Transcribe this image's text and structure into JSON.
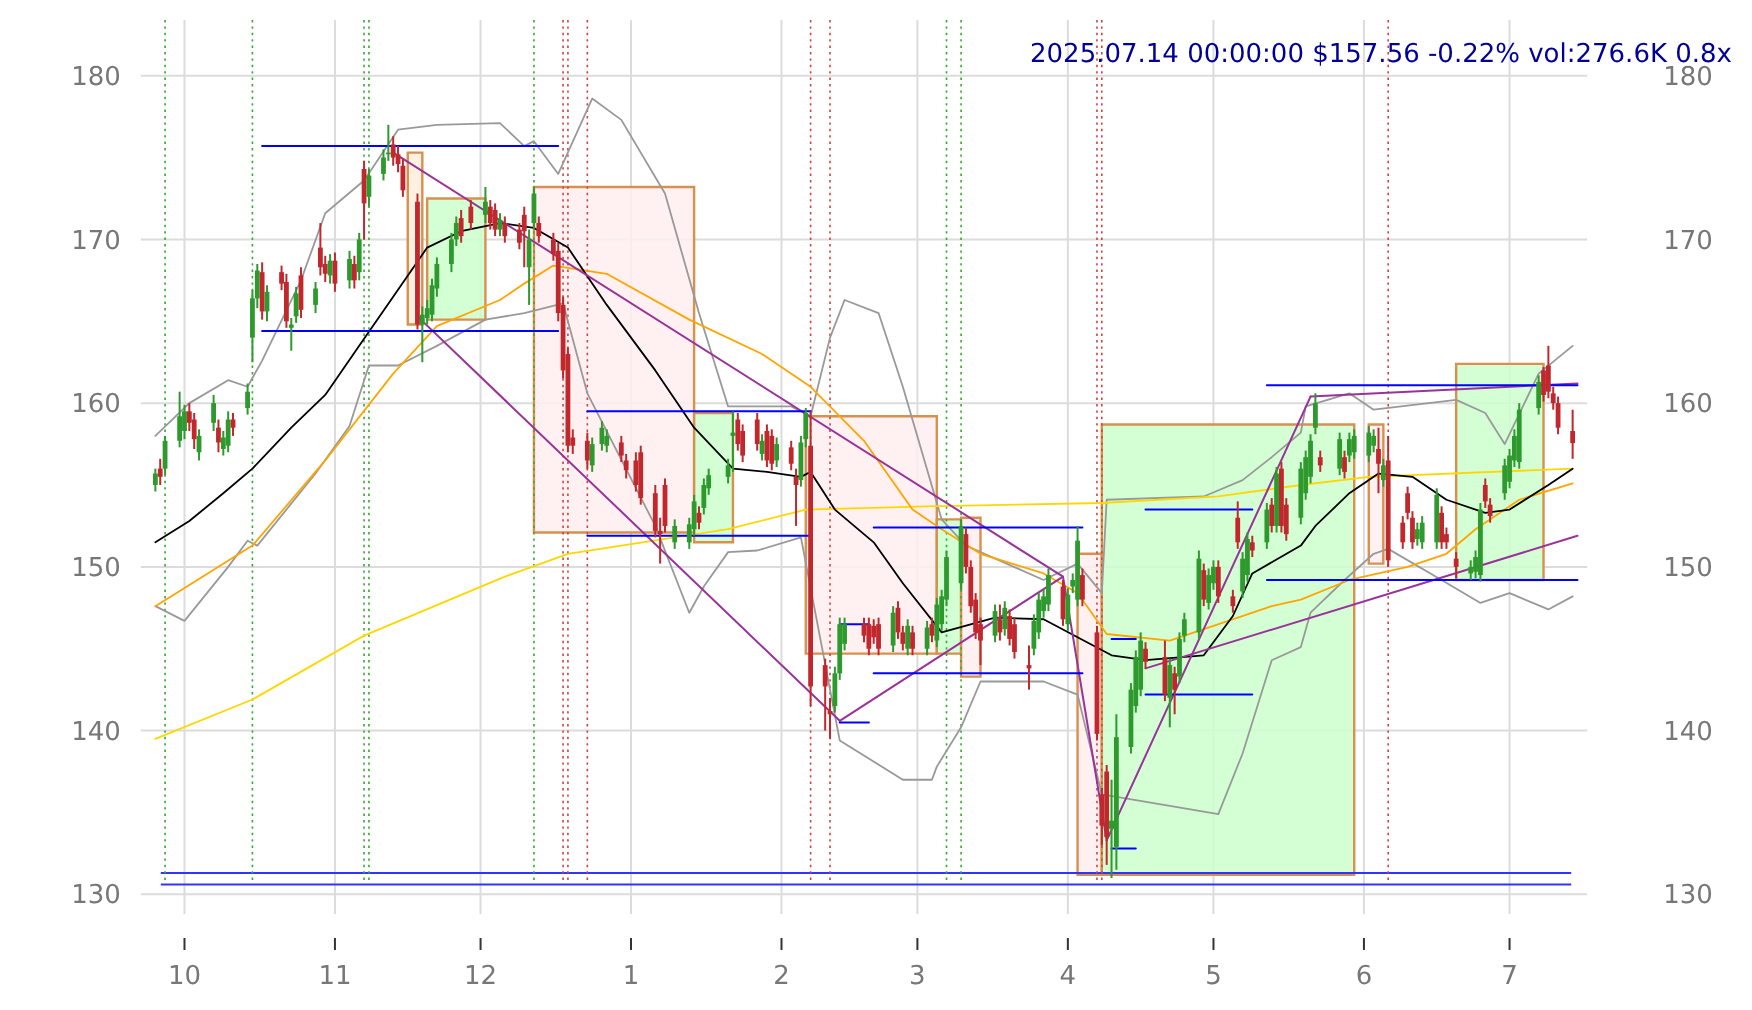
{
  "chart_data": {
    "type": "candlestick",
    "title": "2025.07.14 00:00:00 $157.56 -0.22% vol:276.6K 0.8x",
    "xlim": [
      "2024-09-22",
      "2025-07-17"
    ],
    "xticks": [
      {
        "value": "2024-10-01",
        "label": "10"
      },
      {
        "value": "2024-11-01",
        "label": "11"
      },
      {
        "value": "2024-12-01",
        "label": "12"
      },
      {
        "value": "2025-01-01",
        "label": "1"
      },
      {
        "value": "2025-02-01",
        "label": "2"
      },
      {
        "value": "2025-03-01",
        "label": "3"
      },
      {
        "value": "2025-04-01",
        "label": "4"
      },
      {
        "value": "2025-05-01",
        "label": "5"
      },
      {
        "value": "2025-06-01",
        "label": "6"
      },
      {
        "value": "2025-07-01",
        "label": "7"
      }
    ],
    "ylim": [
      128.8,
      183.4
    ],
    "yticks": [
      130,
      140,
      150,
      160,
      170,
      180
    ],
    "y2lim": [
      128.8,
      183.4
    ],
    "y2ticks": [
      130,
      140,
      150,
      160,
      170,
      180
    ],
    "grid": true,
    "x": [
      "2024-09-25",
      "2024-09-26",
      "2024-09-27",
      "2024-09-30",
      "2024-10-01",
      "2024-10-02",
      "2024-10-03",
      "2024-10-04",
      "2024-10-07",
      "2024-10-08",
      "2024-10-09",
      "2024-10-10",
      "2024-10-11",
      "2024-10-14",
      "2024-10-15",
      "2024-10-16",
      "2024-10-17",
      "2024-10-18",
      "2024-10-21",
      "2024-10-22",
      "2024-10-23",
      "2024-10-24",
      "2024-10-25",
      "2024-10-28",
      "2024-10-29",
      "2024-10-30",
      "2024-10-31",
      "2024-11-01",
      "2024-11-04",
      "2024-11-05",
      "2024-11-06",
      "2024-11-07",
      "2024-11-08",
      "2024-11-11",
      "2024-11-12",
      "2024-11-13",
      "2024-11-14",
      "2024-11-15",
      "2024-11-18",
      "2024-11-19",
      "2024-11-20",
      "2024-11-21",
      "2024-11-22",
      "2024-11-25",
      "2024-11-26",
      "2024-11-27",
      "2024-11-29",
      "2024-12-02",
      "2024-12-03",
      "2024-12-04",
      "2024-12-05",
      "2024-12-06",
      "2024-12-09",
      "2024-12-10",
      "2024-12-11",
      "2024-12-12",
      "2024-12-13",
      "2024-12-16",
      "2024-12-17",
      "2024-12-18",
      "2024-12-19",
      "2024-12-20",
      "2024-12-23",
      "2024-12-24",
      "2024-12-26",
      "2024-12-27",
      "2024-12-30",
      "2024-12-31",
      "2025-01-02",
      "2025-01-03",
      "2025-01-06",
      "2025-01-07",
      "2025-01-08",
      "2025-01-10",
      "2025-01-13",
      "2025-01-14",
      "2025-01-15",
      "2025-01-16",
      "2025-01-17",
      "2025-01-21",
      "2025-01-22",
      "2025-01-23",
      "2025-01-24",
      "2025-01-27",
      "2025-01-28",
      "2025-01-29",
      "2025-01-30",
      "2025-01-31",
      "2025-02-03",
      "2025-02-04",
      "2025-02-05",
      "2025-02-06",
      "2025-02-07",
      "2025-02-10",
      "2025-02-11",
      "2025-02-12",
      "2025-02-13",
      "2025-02-14",
      "2025-02-18",
      "2025-02-19",
      "2025-02-20",
      "2025-02-21",
      "2025-02-24",
      "2025-02-25",
      "2025-02-26",
      "2025-02-27",
      "2025-02-28",
      "2025-03-03",
      "2025-03-04",
      "2025-03-05",
      "2025-03-06",
      "2025-03-07",
      "2025-03-10",
      "2025-03-11",
      "2025-03-12",
      "2025-03-13",
      "2025-03-14",
      "2025-03-17",
      "2025-03-18",
      "2025-03-19",
      "2025-03-20",
      "2025-03-21",
      "2025-03-24",
      "2025-03-25",
      "2025-03-26",
      "2025-03-27",
      "2025-03-28",
      "2025-03-31",
      "2025-04-01",
      "2025-04-02",
      "2025-04-03",
      "2025-04-04",
      "2025-04-07",
      "2025-04-08",
      "2025-04-09",
      "2025-04-10",
      "2025-04-11",
      "2025-04-14",
      "2025-04-15",
      "2025-04-16",
      "2025-04-17",
      "2025-04-21",
      "2025-04-22",
      "2025-04-23",
      "2025-04-24",
      "2025-04-25",
      "2025-04-28",
      "2025-04-29",
      "2025-04-30",
      "2025-05-01",
      "2025-05-02",
      "2025-05-05",
      "2025-05-06",
      "2025-05-07",
      "2025-05-08",
      "2025-05-09",
      "2025-05-12",
      "2025-05-13",
      "2025-05-14",
      "2025-05-15",
      "2025-05-16",
      "2025-05-19",
      "2025-05-20",
      "2025-05-21",
      "2025-05-22",
      "2025-05-23",
      "2025-05-27",
      "2025-05-28",
      "2025-05-29",
      "2025-05-30",
      "2025-06-02",
      "2025-06-03",
      "2025-06-04",
      "2025-06-05",
      "2025-06-06",
      "2025-06-09",
      "2025-06-10",
      "2025-06-11",
      "2025-06-12",
      "2025-06-13",
      "2025-06-16",
      "2025-06-17",
      "2025-06-18",
      "2025-06-20",
      "2025-06-23",
      "2025-06-24",
      "2025-06-25",
      "2025-06-26",
      "2025-06-27",
      "2025-06-30",
      "2025-07-01",
      "2025-07-02",
      "2025-07-03",
      "2025-07-07",
      "2025-07-08",
      "2025-07-09",
      "2025-07-10",
      "2025-07-11",
      "2025-07-14"
    ],
    "ohlc": [
      [
        155.0,
        156.0,
        154.6,
        155.7
      ],
      [
        156.0,
        156.6,
        155.0,
        155.5
      ],
      [
        156.0,
        158.0,
        155.6,
        157.7
      ],
      [
        157.7,
        160.7,
        157.3,
        159.2
      ],
      [
        158.3,
        159.9,
        157.8,
        159.5
      ],
      [
        159.5,
        160.0,
        158.3,
        158.8
      ],
      [
        159.0,
        159.4,
        157.2,
        157.8
      ],
      [
        157.0,
        158.4,
        156.5,
        158.0
      ],
      [
        158.8,
        160.5,
        158.3,
        160.0
      ],
      [
        158.5,
        159.0,
        157.0,
        157.6
      ],
      [
        157.2,
        158.3,
        156.8,
        157.9
      ],
      [
        157.4,
        159.5,
        157.0,
        159.0
      ],
      [
        159.0,
        159.4,
        158.0,
        158.5
      ],
      [
        159.7,
        161.2,
        159.3,
        160.7
      ],
      [
        164.0,
        166.9,
        162.5,
        166.4
      ],
      [
        166.4,
        168.5,
        165.8,
        168.1
      ],
      [
        168.0,
        168.6,
        165.1,
        165.6
      ],
      [
        165.6,
        167.2,
        165.0,
        166.8
      ],
      [
        168.0,
        168.4,
        166.9,
        167.3
      ],
      [
        167.4,
        167.9,
        164.6,
        165.0
      ],
      [
        164.6,
        165.2,
        163.2,
        164.8
      ],
      [
        165.3,
        167.1,
        164.9,
        166.7
      ],
      [
        167.8,
        168.3,
        165.2,
        165.7
      ],
      [
        166.0,
        167.4,
        165.5,
        167.0
      ],
      [
        169.5,
        171.0,
        167.8,
        168.3
      ],
      [
        168.5,
        169.0,
        167.4,
        167.9
      ],
      [
        167.8,
        169.1,
        167.3,
        168.7
      ],
      [
        168.7,
        169.2,
        166.8,
        167.3
      ],
      [
        167.5,
        169.3,
        167.0,
        168.8
      ],
      [
        168.5,
        169.0,
        167.0,
        167.5
      ],
      [
        168.0,
        170.4,
        167.5,
        170.0
      ],
      [
        174.3,
        174.8,
        170.0,
        172.2
      ],
      [
        172.6,
        174.3,
        172.0,
        173.9
      ],
      [
        174.0,
        175.5,
        173.6,
        175.0
      ],
      [
        175.2,
        177.0,
        174.8,
        175.3
      ],
      [
        175.8,
        176.3,
        174.5,
        175.0
      ],
      [
        175.2,
        175.7,
        174.1,
        174.6
      ],
      [
        174.5,
        174.9,
        172.6,
        173.0
      ],
      [
        172.3,
        172.8,
        164.5,
        164.8
      ],
      [
        164.8,
        165.9,
        162.5,
        165.4
      ],
      [
        165.2,
        166.3,
        164.8,
        165.8
      ],
      [
        165.4,
        167.6,
        165.0,
        167.2
      ],
      [
        167.0,
        168.9,
        166.5,
        168.5
      ],
      [
        168.5,
        170.4,
        168.0,
        170.0
      ],
      [
        170.0,
        171.4,
        169.6,
        171.0
      ],
      [
        171.3,
        171.8,
        169.8,
        170.2
      ],
      [
        172.0,
        172.4,
        170.6,
        171.0
      ],
      [
        171.5,
        173.2,
        171.0,
        172.3
      ],
      [
        172.0,
        172.4,
        170.6,
        171.0
      ],
      [
        171.8,
        172.2,
        170.2,
        170.6
      ],
      [
        170.6,
        171.6,
        170.2,
        171.2
      ],
      [
        171.0,
        171.4,
        169.8,
        170.2
      ],
      [
        170.6,
        171.0,
        169.4,
        169.8
      ],
      [
        171.5,
        172.0,
        168.3,
        170.5
      ],
      [
        168.3,
        170.6,
        166.0,
        170.0
      ],
      [
        171.0,
        173.2,
        170.6,
        172.8
      ],
      [
        171.0,
        171.4,
        169.8,
        170.2
      ],
      [
        170.0,
        170.4,
        168.7,
        169.1
      ],
      [
        169.3,
        169.8,
        165.0,
        165.5
      ],
      [
        166.0,
        166.5,
        161.5,
        162.0
      ],
      [
        163.0,
        163.4,
        157.0,
        157.4
      ],
      [
        157.9,
        158.4,
        156.9,
        157.4
      ],
      [
        157.7,
        158.2,
        156.0,
        156.5
      ],
      [
        156.2,
        157.9,
        155.8,
        157.5
      ],
      [
        157.5,
        158.9,
        157.1,
        158.5
      ],
      [
        157.4,
        158.4,
        157.0,
        158.0
      ],
      [
        157.6,
        158.0,
        156.4,
        156.8
      ],
      [
        156.5,
        156.9,
        155.4,
        155.9
      ],
      [
        156.5,
        157.0,
        154.6,
        155.0
      ],
      [
        157.0,
        157.4,
        153.8,
        154.2
      ],
      [
        154.5,
        155.0,
        151.8,
        152.2
      ],
      [
        152.2,
        153.0,
        150.2,
        152.0
      ],
      [
        155.0,
        155.4,
        152.1,
        152.5
      ],
      [
        151.5,
        152.9,
        151.1,
        152.5
      ],
      [
        151.5,
        153.0,
        151.1,
        152.6
      ],
      [
        152.3,
        154.4,
        151.9,
        154.0
      ],
      [
        153.3,
        153.7,
        152.3,
        152.7
      ],
      [
        153.6,
        155.4,
        153.2,
        155.0
      ],
      [
        154.8,
        156.0,
        154.4,
        155.6
      ],
      [
        155.5,
        156.6,
        155.1,
        156.2
      ],
      [
        158.0,
        159.5,
        155.8,
        158.2
      ],
      [
        159.0,
        159.4,
        157.1,
        157.5
      ],
      [
        158.3,
        158.7,
        156.4,
        156.8
      ],
      [
        159.0,
        159.4,
        157.1,
        157.5
      ],
      [
        156.9,
        158.1,
        156.5,
        157.7
      ],
      [
        158.3,
        158.7,
        156.1,
        156.5
      ],
      [
        158.0,
        158.4,
        155.9,
        156.3
      ],
      [
        156.5,
        157.9,
        156.1,
        157.5
      ],
      [
        157.3,
        157.7,
        155.9,
        156.3
      ],
      [
        155.5,
        156.0,
        152.5,
        155.0
      ],
      [
        155.3,
        158.0,
        154.9,
        157.6
      ],
      [
        157.8,
        159.7,
        157.3,
        159.4
      ],
      [
        157.4,
        159.5,
        141.5,
        142.7
      ],
      [
        144.0,
        144.4,
        140.0,
        142.7
      ],
      [
        141.2,
        142.0,
        139.5,
        141.0
      ],
      [
        141.5,
        143.9,
        141.1,
        143.5
      ],
      [
        143.5,
        146.9,
        143.1,
        146.5
      ],
      [
        145.3,
        146.9,
        144.9,
        146.5
      ],
      [
        146.5,
        146.9,
        145.4,
        145.8
      ],
      [
        146.5,
        146.9,
        144.6,
        145.0
      ],
      [
        146.4,
        146.8,
        145.3,
        145.7
      ],
      [
        146.5,
        146.9,
        144.6,
        145.0
      ],
      [
        145.2,
        147.6,
        144.8,
        147.2
      ],
      [
        147.5,
        147.9,
        145.6,
        146.0
      ],
      [
        146.0,
        146.4,
        144.9,
        145.3
      ],
      [
        145.0,
        146.8,
        144.6,
        146.4
      ],
      [
        146.0,
        146.4,
        144.6,
        145.0
      ],
      [
        145.0,
        146.7,
        144.6,
        146.3
      ],
      [
        146.5,
        146.9,
        145.4,
        145.8
      ],
      [
        145.5,
        148.1,
        145.1,
        147.7
      ],
      [
        146.5,
        148.6,
        146.1,
        148.2
      ],
      [
        148.0,
        151.0,
        147.6,
        150.6
      ],
      [
        149.0,
        152.9,
        148.6,
        152.5
      ],
      [
        152.0,
        152.4,
        149.6,
        150.0
      ],
      [
        150.0,
        150.4,
        147.2,
        147.6
      ],
      [
        148.0,
        148.4,
        145.6,
        146.0
      ],
      [
        146.5,
        146.9,
        144.0,
        145.5
      ],
      [
        145.8,
        147.7,
        145.4,
        147.3
      ],
      [
        146.8,
        147.7,
        145.5,
        146.0
      ],
      [
        146.2,
        147.9,
        145.8,
        147.5
      ],
      [
        147.0,
        147.4,
        145.2,
        145.6
      ],
      [
        146.5,
        146.9,
        144.4,
        144.8
      ],
      [
        144.0,
        145.2,
        142.5,
        143.8
      ],
      [
        145.0,
        147.1,
        144.6,
        146.7
      ],
      [
        146.0,
        148.4,
        145.6,
        148.0
      ],
      [
        147.3,
        148.6,
        146.9,
        148.2
      ],
      [
        147.7,
        149.9,
        147.3,
        149.5
      ],
      [
        148.8,
        149.2,
        146.4,
        146.8
      ],
      [
        146.5,
        148.7,
        146.1,
        148.3
      ],
      [
        148.8,
        149.6,
        148.4,
        149.2
      ],
      [
        148.0,
        152.5,
        147.6,
        151.6
      ],
      [
        149.5,
        149.9,
        147.6,
        148.0
      ],
      [
        146.0,
        146.4,
        139.4,
        139.8
      ],
      [
        136.1,
        136.5,
        133.0,
        134.2
      ],
      [
        137.5,
        137.9,
        131.8,
        133.5
      ],
      [
        134.0,
        137.0,
        131.0,
        134.5
      ],
      [
        132.9,
        141.0,
        131.5,
        139.6
      ],
      [
        139.0,
        142.9,
        138.6,
        142.5
      ],
      [
        141.5,
        144.9,
        141.1,
        144.5
      ],
      [
        142.5,
        146.0,
        142.1,
        145.5
      ],
      [
        145.0,
        145.4,
        143.8,
        144.2
      ],
      [
        144.5,
        145.5,
        141.8,
        142.2
      ],
      [
        142.0,
        144.4,
        140.2,
        144.0
      ],
      [
        143.5,
        143.9,
        141.0,
        142.5
      ],
      [
        143.3,
        146.0,
        142.9,
        145.6
      ],
      [
        145.8,
        147.2,
        145.4,
        146.8
      ],
      [
        146.0,
        151.0,
        145.6,
        150.5
      ],
      [
        149.8,
        150.2,
        147.6,
        148.0
      ],
      [
        147.8,
        149.9,
        147.4,
        149.5
      ],
      [
        149.0,
        150.4,
        148.6,
        150.0
      ],
      [
        150.0,
        150.4,
        147.8,
        148.2
      ],
      [
        148.2,
        148.6,
        147.2,
        147.6
      ],
      [
        153.0,
        154.0,
        151.1,
        151.5
      ],
      [
        148.5,
        150.9,
        148.1,
        150.5
      ],
      [
        149.5,
        152.1,
        149.1,
        151.7
      ],
      [
        151.5,
        151.9,
        150.6,
        151.0
      ],
      [
        151.5,
        153.9,
        151.1,
        153.5
      ],
      [
        153.8,
        154.2,
        152.1,
        152.5
      ],
      [
        152.5,
        156.1,
        152.1,
        155.7
      ],
      [
        156.0,
        156.4,
        152.1,
        152.5
      ],
      [
        153.8,
        154.2,
        151.6,
        152.0
      ],
      [
        153.0,
        156.4,
        152.6,
        156.0
      ],
      [
        154.5,
        157.1,
        154.1,
        156.7
      ],
      [
        155.5,
        158.1,
        155.1,
        157.7
      ],
      [
        158.5,
        160.6,
        158.1,
        160.0
      ],
      [
        156.7,
        157.1,
        155.8,
        156.2
      ],
      [
        156.0,
        158.2,
        155.6,
        157.8
      ],
      [
        156.7,
        157.1,
        155.4,
        155.8
      ],
      [
        156.8,
        158.2,
        156.4,
        157.8
      ],
      [
        157.0,
        158.4,
        156.6,
        158.0
      ],
      [
        156.8,
        158.6,
        156.4,
        158.2
      ],
      [
        157.4,
        158.4,
        157.0,
        158.0
      ],
      [
        157.2,
        158.5,
        154.5,
        156.3
      ],
      [
        155.3,
        156.6,
        154.9,
        156.2
      ],
      [
        156.5,
        158.0,
        150.0,
        150.4
      ],
      [
        152.7,
        153.1,
        151.1,
        151.5
      ],
      [
        154.5,
        154.9,
        152.9,
        153.3
      ],
      [
        153.0,
        153.4,
        151.1,
        151.5
      ],
      [
        151.7,
        152.7,
        151.3,
        152.3
      ],
      [
        151.5,
        153.1,
        151.1,
        152.7
      ],
      [
        151.5,
        154.8,
        151.1,
        154.4
      ],
      [
        153.3,
        153.7,
        151.1,
        151.5
      ],
      [
        152.0,
        152.4,
        151.1,
        151.5
      ],
      [
        150.5,
        150.9,
        149.3,
        150.0
      ],
      [
        149.6,
        150.4,
        149.2,
        150.0
      ],
      [
        149.7,
        151.0,
        149.3,
        150.6
      ],
      [
        149.5,
        153.9,
        149.1,
        153.5
      ],
      [
        155.0,
        155.4,
        153.6,
        154.0
      ],
      [
        153.8,
        154.2,
        152.7,
        153.1
      ],
      [
        154.5,
        156.6,
        154.1,
        156.2
      ],
      [
        155.2,
        157.2,
        154.8,
        156.8
      ],
      [
        156.5,
        158.4,
        156.1,
        158.0
      ],
      [
        156.4,
        160.0,
        156.0,
        159.6
      ],
      [
        159.7,
        161.7,
        159.3,
        161.3
      ],
      [
        162.0,
        162.2,
        160.1,
        160.5
      ],
      [
        162.3,
        163.5,
        160.3,
        160.7
      ],
      [
        160.6,
        161.0,
        159.6,
        160.0
      ],
      [
        160.0,
        160.4,
        158.1,
        158.5
      ],
      [
        158.3,
        159.6,
        156.6,
        157.56
      ]
    ],
    "series": [
      {
        "type": "area",
        "color": "#ffeedd",
        "x": [
          "2024-11-16",
          "2024-11-16",
          "2024-11-19",
          "2024-11-19",
          "2024-11-16"
        ],
        "values": [
          164.8,
          175.3,
          175.3,
          164.8,
          164.8
        ]
      },
      {
        "type": "area",
        "color": "#ccffcc",
        "x": [
          "2024-11-20",
          "2024-11-20",
          "2024-12-02",
          "2024-12-02",
          "2024-11-20"
        ],
        "values": [
          165.1,
          172.5,
          172.5,
          165.1,
          165.1
        ]
      },
      {
        "type": "area",
        "color": "#ffeeee",
        "x": [
          "2024-12-12",
          "2024-12-12",
          "2025-01-14",
          "2025-01-14",
          "2024-12-12"
        ],
        "values": [
          152.1,
          173.2,
          173.2,
          152.1,
          152.1
        ]
      },
      {
        "type": "area",
        "color": "#ccffcc",
        "x": [
          "2025-01-14",
          "2025-01-14",
          "2025-01-22",
          "2025-01-22",
          "2025-01-14"
        ],
        "values": [
          151.5,
          159.4,
          159.4,
          151.5,
          151.5
        ]
      },
      {
        "type": "area",
        "color": "#ffeeee",
        "x": [
          "2025-02-06",
          "2025-02-06",
          "2025-03-05",
          "2025-03-05",
          "2025-02-06"
        ],
        "values": [
          144.7,
          159.2,
          159.2,
          144.7,
          144.7
        ]
      },
      {
        "type": "area",
        "color": "#ccffcc",
        "x": [
          "2025-03-05",
          "2025-03-05",
          "2025-03-10",
          "2025-03-10",
          "2025-03-05"
        ],
        "values": [
          144.7,
          152.9,
          152.9,
          144.7,
          144.7
        ]
      },
      {
        "type": "area",
        "color": "#ffeeee",
        "x": [
          "2025-03-10",
          "2025-03-10",
          "2025-03-14",
          "2025-03-14",
          "2025-03-10"
        ],
        "values": [
          143.3,
          153,
          153,
          143.3,
          143.3
        ]
      },
      {
        "type": "area",
        "color": "#ffeeee",
        "x": [
          "2025-04-03",
          "2025-04-03",
          "2025-04-08",
          "2025-04-08",
          "2025-04-03"
        ],
        "values": [
          131.2,
          150.8,
          150.8,
          131.2,
          131.2
        ]
      },
      {
        "type": "area",
        "color": "#ccffcc",
        "x": [
          "2025-04-08",
          "2025-04-08",
          "2025-05-30",
          "2025-05-30",
          "2025-04-08"
        ],
        "values": [
          131.2,
          158.7,
          158.7,
          131.2,
          131.2
        ]
      },
      {
        "type": "area",
        "color": "#ffeeee",
        "x": [
          "2025-06-02",
          "2025-06-02",
          "2025-06-05",
          "2025-06-05",
          "2025-06-02"
        ],
        "values": [
          150.2,
          158.7,
          158.7,
          150.2,
          150.2
        ]
      },
      {
        "type": "area",
        "color": "#ccffcc",
        "x": [
          "2025-06-20",
          "2025-06-20",
          "2025-07-08",
          "2025-07-08",
          "2025-06-20"
        ],
        "values": [
          149.2,
          162.4,
          162.4,
          149.2,
          149.2
        ]
      },
      {
        "type": "line",
        "color": "#999999",
        "x": [
          "2024-09-25",
          "2024-10-02",
          "2024-10-10",
          "2024-10-14",
          "2024-10-17",
          "2024-10-25",
          "2024-10-30",
          "2024-11-07",
          "2024-11-14",
          "2024-11-22",
          "2024-12-05",
          "2024-12-10",
          "2024-12-12",
          "2024-12-17",
          "2024-12-24",
          "2024-12-30",
          "2025-01-08",
          "2025-01-15",
          "2025-01-21",
          "2025-02-03",
          "2025-02-07",
          "2025-02-11",
          "2025-02-14",
          "2025-02-21",
          "2025-02-26",
          "2025-03-06",
          "2025-03-11",
          "2025-03-27",
          "2025-04-03",
          "2025-04-08",
          "2025-04-09",
          "2025-04-29",
          "2025-05-07",
          "2025-05-13",
          "2025-05-19",
          "2025-05-20",
          "2025-05-29",
          "2025-06-03",
          "2025-06-20",
          "2025-06-26",
          "2025-06-30",
          "2025-07-07",
          "2025-07-14"
        ],
        "values": [
          158,
          160,
          161.4,
          161,
          162.6,
          167.5,
          171.6,
          173.6,
          176.7,
          177,
          177.1,
          175.7,
          176,
          174,
          178.6,
          177.3,
          172.8,
          165.5,
          159.8,
          159.8,
          159.2,
          164,
          166.3,
          165.5,
          161,
          152.9,
          151.3,
          149.2,
          150.2,
          148.4,
          154.1,
          154.3,
          155.3,
          156.7,
          158.2,
          159.8,
          160.6,
          159.6,
          160.2,
          159.4,
          157.5,
          161.8,
          163.5
        ]
      },
      {
        "type": "line",
        "color": "#999999",
        "x": [
          "2024-09-25",
          "2024-10-01",
          "2024-10-10",
          "2024-10-14",
          "2024-10-16",
          "2024-10-28",
          "2024-11-04",
          "2024-11-08",
          "2024-11-14",
          "2024-11-22",
          "2024-12-02",
          "2024-12-10",
          "2024-12-18",
          "2024-12-23",
          "2025-01-06",
          "2025-01-13",
          "2025-01-16",
          "2025-01-21",
          "2025-01-27",
          "2025-02-05",
          "2025-02-13",
          "2025-02-26",
          "2025-03-04",
          "2025-03-05",
          "2025-03-10",
          "2025-03-14",
          "2025-03-27",
          "2025-04-03",
          "2025-04-08",
          "2025-04-22",
          "2025-05-02",
          "2025-05-07",
          "2025-05-13",
          "2025-05-19",
          "2025-05-21",
          "2025-05-28",
          "2025-06-03",
          "2025-06-06",
          "2025-06-17",
          "2025-06-25",
          "2025-07-01",
          "2025-07-09",
          "2025-07-14"
        ],
        "values": [
          147.6,
          146.7,
          150,
          151.6,
          151.3,
          155.7,
          158.6,
          162.3,
          162.3,
          163.5,
          165.1,
          165.5,
          166.1,
          160.6,
          152.5,
          147.2,
          148.8,
          150.9,
          151,
          151.8,
          139.4,
          137,
          137,
          137.8,
          140.2,
          143,
          143,
          142.2,
          136.1,
          135.4,
          134.9,
          138.6,
          144.3,
          145.1,
          147.2,
          149.2,
          150.8,
          151.1,
          149.2,
          147.8,
          148.4,
          147.4,
          148.2
        ]
      },
      {
        "type": "line",
        "color": "#ffd700",
        "x": [
          "2024-09-25",
          "2024-10-15",
          "2024-11-07",
          "2024-12-06",
          "2024-12-19",
          "2025-01-21",
          "2025-02-06",
          "2025-03-03",
          "2025-04-08",
          "2025-05-02",
          "2025-05-19",
          "2025-06-02",
          "2025-07-14"
        ],
        "values": [
          139.5,
          141.9,
          145.8,
          149.4,
          150.8,
          152.3,
          153.5,
          153.7,
          153.9,
          154.3,
          155,
          155.5,
          156
        ]
      },
      {
        "type": "line",
        "color": "#ffa500",
        "x": [
          "2024-09-25",
          "2024-10-15",
          "2024-10-30",
          "2024-11-13",
          "2024-11-22",
          "2024-12-05",
          "2024-12-10",
          "2024-12-16",
          "2024-12-27",
          "2025-01-13",
          "2025-01-28",
          "2025-02-07",
          "2025-02-18",
          "2025-02-28",
          "2025-03-06",
          "2025-03-14",
          "2025-03-27",
          "2025-04-03",
          "2025-04-09",
          "2025-04-22",
          "2025-05-01",
          "2025-05-13",
          "2025-05-19",
          "2025-05-29",
          "2025-06-10",
          "2025-06-18",
          "2025-06-24",
          "2025-07-03",
          "2025-07-14"
        ],
        "values": [
          147.6,
          151.3,
          156.5,
          161.8,
          164.7,
          166.3,
          167.3,
          168.4,
          167.9,
          165.1,
          163,
          161,
          157.7,
          153.5,
          152.3,
          150.8,
          149.6,
          148.4,
          145.9,
          145.5,
          146.4,
          147.6,
          148,
          149.2,
          150,
          150.8,
          152.3,
          154.1,
          155.1
        ]
      },
      {
        "type": "line",
        "color": "#000000",
        "x": [
          "2024-09-25",
          "2024-10-02",
          "2024-10-09",
          "2024-10-15",
          "2024-10-23",
          "2024-10-30",
          "2024-11-06",
          "2024-11-13",
          "2024-11-20",
          "2024-11-27",
          "2024-12-05",
          "2024-12-12",
          "2024-12-19",
          "2024-12-27",
          "2025-01-06",
          "2025-01-14",
          "2025-01-22",
          "2025-01-29",
          "2025-02-05",
          "2025-02-07",
          "2025-02-12",
          "2025-02-20",
          "2025-02-26",
          "2025-03-06",
          "2025-03-17",
          "2025-03-27",
          "2025-04-03",
          "2025-04-10",
          "2025-04-17",
          "2025-04-29",
          "2025-05-05",
          "2025-05-09",
          "2025-05-19",
          "2025-05-22",
          "2025-05-29",
          "2025-06-04",
          "2025-06-11",
          "2025-06-18",
          "2025-06-26",
          "2025-07-01",
          "2025-07-09",
          "2025-07-14"
        ],
        "values": [
          151.5,
          152.8,
          154.5,
          156,
          158.5,
          160.5,
          163.5,
          166.5,
          169.5,
          170.5,
          171,
          170.7,
          169.5,
          166,
          162,
          158.5,
          156,
          155.8,
          155.5,
          155.8,
          153.5,
          151.5,
          149,
          146,
          146.9,
          146.8,
          145.7,
          144.6,
          144.3,
          144.6,
          147,
          149.6,
          151.3,
          152.5,
          154.5,
          155.7,
          155.5,
          154.1,
          153.3,
          153.5,
          155,
          156
        ]
      },
      {
        "type": "line",
        "color": "#993399",
        "x": [
          "2024-11-13",
          "2025-03-31"
        ],
        "values": [
          175.3,
          149.4
        ]
      },
      {
        "type": "line",
        "color": "#993399",
        "x": [
          "2024-11-18",
          "2025-02-13"
        ],
        "values": [
          165.3,
          140.6
        ]
      },
      {
        "type": "line",
        "color": "#993399",
        "x": [
          "2025-02-13",
          "2025-03-31"
        ],
        "values": [
          140.6,
          149.4
        ]
      },
      {
        "type": "line",
        "color": "#993399",
        "x": [
          "2025-03-31",
          "2025-04-09"
        ],
        "values": [
          149.4,
          133.3
        ]
      },
      {
        "type": "line",
        "color": "#993399",
        "x": [
          "2025-04-09",
          "2025-05-21"
        ],
        "values": [
          133.3,
          160.4
        ]
      },
      {
        "type": "line",
        "color": "#993399",
        "x": [
          "2025-05-21",
          "2025-07-15"
        ],
        "values": [
          160.4,
          161.2
        ]
      },
      {
        "type": "line",
        "color": "#993399",
        "x": [
          "2025-04-17",
          "2025-07-15"
        ],
        "values": [
          143.8,
          151.9
        ]
      },
      {
        "type": "line",
        "color": "#0000ff",
        "x": [
          "2024-10-17",
          "2024-12-17"
        ],
        "values": [
          175.7,
          175.7
        ]
      },
      {
        "type": "line",
        "color": "#0000ff",
        "x": [
          "2024-10-17",
          "2024-12-17"
        ],
        "values": [
          164.4,
          164.4
        ]
      },
      {
        "type": "line",
        "color": "#0000ff",
        "x": [
          "2024-12-23",
          "2025-02-07"
        ],
        "values": [
          159.5,
          159.5
        ]
      },
      {
        "type": "line",
        "color": "#0000ff",
        "x": [
          "2024-12-23",
          "2025-02-07"
        ],
        "values": [
          151.9,
          151.9
        ]
      },
      {
        "type": "line",
        "color": "#0000ff",
        "x": [
          "2025-02-20",
          "2025-04-04"
        ],
        "values": [
          152.4,
          152.4
        ]
      },
      {
        "type": "line",
        "color": "#0000ff",
        "x": [
          "2025-02-20",
          "2025-04-04"
        ],
        "values": [
          143.5,
          143.5
        ]
      },
      {
        "type": "line",
        "color": "#0000ff",
        "x": [
          "2025-02-13",
          "2025-02-19"
        ],
        "values": [
          146.5,
          146.5
        ]
      },
      {
        "type": "line",
        "color": "#0000ff",
        "x": [
          "2025-02-13",
          "2025-02-19"
        ],
        "values": [
          140.5,
          140.5
        ]
      },
      {
        "type": "line",
        "color": "#0000ff",
        "x": [
          "2025-05-12",
          "2025-07-15"
        ],
        "values": [
          161.1,
          161.1
        ]
      },
      {
        "type": "line",
        "color": "#0000ff",
        "x": [
          "2025-05-12",
          "2025-07-15"
        ],
        "values": [
          149.2,
          149.2
        ]
      },
      {
        "type": "line",
        "color": "#0000ff",
        "x": [
          "2025-04-17",
          "2025-05-09"
        ],
        "values": [
          153.5,
          153.5
        ]
      },
      {
        "type": "line",
        "color": "#0000ff",
        "x": [
          "2025-04-17",
          "2025-05-09"
        ],
        "values": [
          142.2,
          142.2
        ]
      },
      {
        "type": "line",
        "color": "#0000ff",
        "x": [
          "2025-04-10",
          "2025-04-15"
        ],
        "values": [
          145.6,
          145.6
        ]
      },
      {
        "type": "line",
        "color": "#0000ff",
        "x": [
          "2025-04-10",
          "2025-04-15"
        ],
        "values": [
          132.8,
          132.8
        ]
      }
    ],
    "ref_lines": [
      {
        "axis": "y",
        "value": 131.3,
        "color": "#3333ff",
        "line_style": "solid"
      },
      {
        "axis": "y",
        "value": 130.6,
        "color": "#3333ff",
        "line_style": "solid"
      },
      {
        "axis": "x",
        "value": "2024-09-27",
        "color": "#33aa33",
        "line_style": "dotted"
      },
      {
        "axis": "x",
        "value": "2024-10-15",
        "color": "#33aa33",
        "line_style": "dotted"
      },
      {
        "axis": "x",
        "value": "2024-11-07",
        "color": "#33aa33",
        "line_style": "dotted"
      },
      {
        "axis": "x",
        "value": "2024-11-08",
        "color": "#33aa33",
        "line_style": "dotted"
      },
      {
        "axis": "x",
        "value": "2024-12-12",
        "color": "#33aa33",
        "line_style": "dotted"
      },
      {
        "axis": "x",
        "value": "2024-12-18",
        "color": "#cc4444",
        "line_style": "dotted"
      },
      {
        "axis": "x",
        "value": "2024-12-19",
        "color": "#cc4444",
        "line_style": "dotted"
      },
      {
        "axis": "x",
        "value": "2024-12-23",
        "color": "#cc4444",
        "line_style": "dotted"
      },
      {
        "axis": "x",
        "value": "2025-02-07",
        "color": "#cc4444",
        "line_style": "dotted"
      },
      {
        "axis": "x",
        "value": "2025-02-11",
        "color": "#cc4444",
        "line_style": "dotted"
      },
      {
        "axis": "x",
        "value": "2025-03-07",
        "color": "#33aa33",
        "line_style": "dotted"
      },
      {
        "axis": "x",
        "value": "2025-03-10",
        "color": "#33aa33",
        "line_style": "dotted"
      },
      {
        "axis": "x",
        "value": "2025-04-07",
        "color": "#cc4444",
        "line_style": "dotted"
      },
      {
        "axis": "x",
        "value": "2025-04-08",
        "color": "#cc4444",
        "line_style": "dotted"
      },
      {
        "axis": "x",
        "value": "2025-06-06",
        "color": "#cc4444",
        "line_style": "dotted"
      }
    ]
  }
}
